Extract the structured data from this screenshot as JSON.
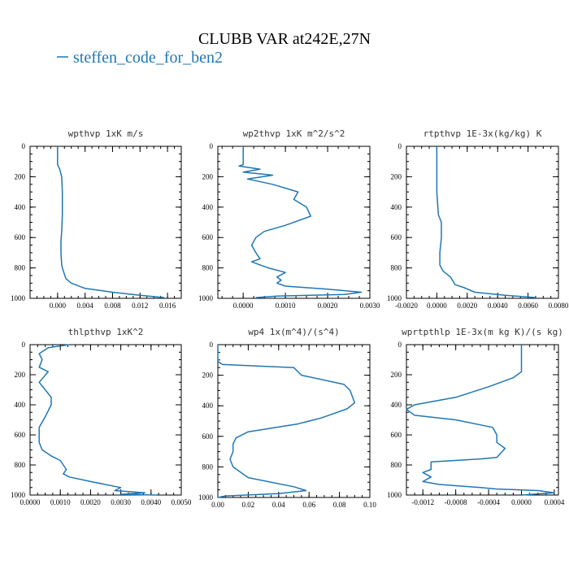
{
  "figure": {
    "title": "CLUBB VAR at242E,27N",
    "legend": {
      "label": "steffen_code_for_ben2",
      "color": "#1f77b4"
    }
  },
  "chart_data": [
    {
      "type": "line",
      "title": "wpthvp  1xK m/s",
      "xlim": [
        -0.004,
        0.018
      ],
      "ylim": [
        1000,
        0
      ],
      "xticks": [
        0.0,
        0.004,
        0.008,
        0.012,
        0.016
      ],
      "xticklabels": [
        "0.000",
        "0.004",
        "0.008",
        "0.012",
        "0.016"
      ],
      "yticks": [
        0,
        200,
        400,
        600,
        800,
        1000
      ],
      "yticklabels": [
        "0",
        "200",
        "400",
        "600",
        "800",
        "1000"
      ],
      "series": [
        {
          "x": [
            0.0,
            0.0,
            0.0003,
            0.0006,
            0.0007,
            0.0007,
            0.0006,
            0.0005,
            0.0005,
            0.0006,
            0.0007,
            0.0012,
            0.002,
            0.004,
            0.008,
            0.012,
            0.0155
          ],
          "y": [
            0,
            120,
            150,
            200,
            300,
            450,
            560,
            620,
            700,
            780,
            800,
            870,
            900,
            935,
            960,
            980,
            995
          ]
        }
      ]
    },
    {
      "type": "line",
      "title": "wp2thvp  1xK m^2/s^2",
      "xlim": [
        -0.0006,
        0.003
      ],
      "ylim": [
        1000,
        0
      ],
      "xticks": [
        0.0,
        0.001,
        0.002,
        0.003
      ],
      "xticklabels": [
        "0.0000",
        "0.0010",
        "0.0020",
        "0.0030"
      ],
      "yticks": [
        0,
        200,
        400,
        600,
        800,
        1000
      ],
      "yticklabels": [
        "0",
        "200",
        "400",
        "600",
        "800",
        "1000"
      ],
      "series": [
        {
          "x": [
            0.0,
            0.0,
            -0.0001,
            0.0004,
            0.0,
            0.0007,
            0.0001,
            0.0007,
            0.0013,
            0.0012,
            0.0015,
            0.0016,
            0.001,
            0.0005,
            0.0003,
            0.0002,
            0.0003,
            0.0004,
            0.0002,
            0.0004,
            0.0006,
            0.001,
            0.0008,
            0.0009,
            0.0008,
            0.001,
            0.002,
            0.0028,
            0.0024,
            0.0008,
            0.0003
          ],
          "y": [
            0,
            120,
            130,
            150,
            170,
            190,
            215,
            250,
            300,
            350,
            400,
            460,
            520,
            560,
            600,
            650,
            700,
            740,
            760,
            780,
            800,
            830,
            860,
            880,
            900,
            920,
            940,
            960,
            975,
            985,
            995
          ]
        }
      ]
    },
    {
      "type": "line",
      "title": "rtpthvp  1E-3x(kg/kg) K",
      "xlim": [
        -0.002,
        0.008
      ],
      "ylim": [
        1000,
        0
      ],
      "xticks": [
        -0.002,
        0.0,
        0.002,
        0.004,
        0.006,
        0.008
      ],
      "xticklabels": [
        "-0.0020",
        "0.0000",
        "0.0020",
        "0.0040",
        "0.0060",
        "0.0080"
      ],
      "yticks": [
        0,
        200,
        400,
        600,
        800,
        1000
      ],
      "yticklabels": [
        "0",
        "200",
        "400",
        "600",
        "800",
        "1000"
      ],
      "series": [
        {
          "x": [
            0.0,
            0.0,
            0.0001,
            0.0003,
            0.0003,
            0.0002,
            0.0002,
            0.0002,
            0.0004,
            0.0009,
            0.0012,
            0.0018,
            0.0025,
            0.0045,
            0.0065
          ],
          "y": [
            0,
            300,
            450,
            500,
            600,
            700,
            760,
            780,
            820,
            860,
            910,
            930,
            960,
            980,
            995
          ]
        }
      ]
    },
    {
      "type": "line",
      "title": "thlpthvp  1xK^2",
      "xlim": [
        0.0,
        0.005
      ],
      "ylim": [
        1000,
        0
      ],
      "xticks": [
        0.0,
        0.001,
        0.002,
        0.003,
        0.004,
        0.005
      ],
      "xticklabels": [
        "0.0000",
        "0.0010",
        "0.0020",
        "0.0030",
        "0.0040",
        "0.0050"
      ],
      "yticks": [
        0,
        200,
        400,
        600,
        800,
        1000
      ],
      "yticklabels": [
        "0",
        "200",
        "400",
        "600",
        "800",
        "1000"
      ],
      "series": [
        {
          "x": [
            0.0013,
            0.0006,
            0.0003,
            0.0004,
            0.0003,
            0.0006,
            0.0003,
            0.0005,
            0.0007,
            0.0007,
            0.0005,
            0.0003,
            0.0003,
            0.0003,
            0.0004,
            0.0007,
            0.001,
            0.0011,
            0.0012,
            0.0011,
            0.0013,
            0.002,
            0.003,
            0.0028,
            0.0038,
            0.003,
            0.0042
          ],
          "y": [
            0,
            20,
            60,
            100,
            150,
            180,
            250,
            300,
            350,
            400,
            480,
            550,
            600,
            650,
            700,
            740,
            770,
            800,
            830,
            860,
            880,
            910,
            950,
            970,
            985,
            995,
            1000
          ]
        }
      ]
    },
    {
      "type": "line",
      "title": "wp4  1x(m^4)/(s^4)",
      "xlim": [
        0.0,
        0.1
      ],
      "ylim": [
        1000,
        0
      ],
      "xticks": [
        0.0,
        0.02,
        0.04,
        0.06,
        0.08,
        0.1
      ],
      "xticklabels": [
        "0.00",
        "0.02",
        "0.04",
        "0.06",
        "0.08",
        "0.10"
      ],
      "yticks": [
        0,
        200,
        400,
        600,
        800,
        1000
      ],
      "yticklabels": [
        "0",
        "200",
        "400",
        "600",
        "800",
        "1000"
      ],
      "series": [
        {
          "x": [
            0.0,
            0.0,
            0.003,
            0.05,
            0.055,
            0.083,
            0.087,
            0.09,
            0.085,
            0.068,
            0.052,
            0.02,
            0.012,
            0.01,
            0.01,
            0.008,
            0.01,
            0.02,
            0.05,
            0.058,
            0.04,
            0.005,
            0.0
          ],
          "y": [
            0,
            110,
            130,
            150,
            200,
            260,
            300,
            380,
            420,
            480,
            520,
            570,
            610,
            650,
            700,
            750,
            800,
            870,
            930,
            955,
            975,
            990,
            1000
          ]
        }
      ]
    },
    {
      "type": "line",
      "title": "wprtpthlp  1E-3x(m kg K)/(s kg)",
      "xlim": [
        -0.0014,
        0.00045
      ],
      "ylim": [
        1000,
        0
      ],
      "xticks": [
        -0.0012,
        -0.0008,
        -0.0004,
        0.0,
        0.0004
      ],
      "xticklabels": [
        "-0.0012",
        "-0.0008",
        "-0.0004",
        "0.0000",
        "0.0004"
      ],
      "yticks": [
        0,
        200,
        400,
        600,
        800,
        1000
      ],
      "yticklabels": [
        "0",
        "200",
        "400",
        "600",
        "800",
        "1000"
      ],
      "series": [
        {
          "x": [
            0.0,
            0.0,
            -0.0001,
            -0.0004,
            -0.0008,
            -0.0013,
            -0.0014,
            -0.0013,
            -0.0008,
            -0.00035,
            -0.0003,
            -0.0003,
            -0.0002,
            -0.00025,
            -0.0003,
            -0.0005,
            -0.0011,
            -0.0011,
            -0.0012,
            -0.0011,
            -0.0012,
            -0.001,
            -0.0005,
            -0.0003,
            0.0002,
            0.0004,
            0.0
          ],
          "y": [
            0,
            180,
            220,
            280,
            350,
            400,
            430,
            470,
            500,
            550,
            600,
            650,
            690,
            720,
            750,
            760,
            780,
            830,
            850,
            880,
            910,
            930,
            950,
            960,
            970,
            985,
            1000
          ]
        }
      ]
    }
  ]
}
